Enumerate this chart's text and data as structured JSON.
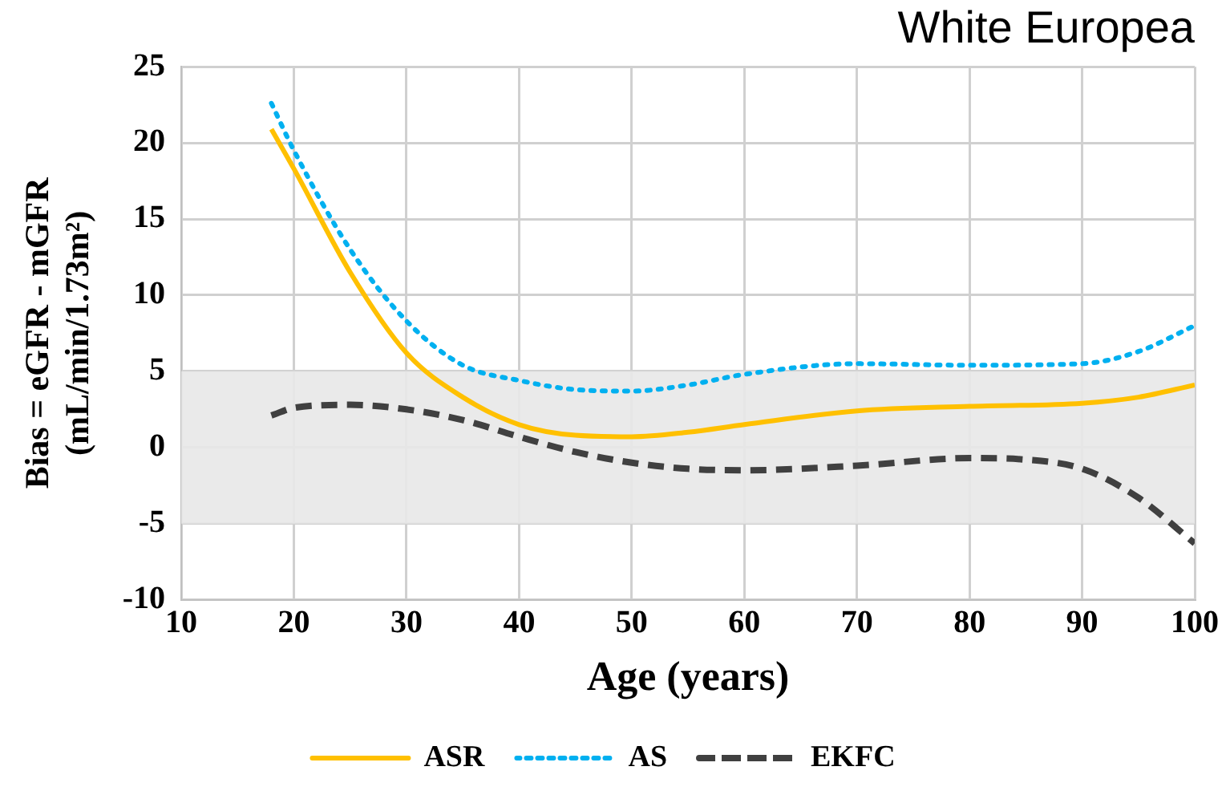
{
  "chart_data": {
    "type": "line",
    "title": "White Europea",
    "xlabel": "Age (years)",
    "ylabel": "Bias = eGFR - mGFR\n(mL/min/1.73m²)",
    "xlim": [
      10,
      100
    ],
    "xticks": [
      10,
      20,
      30,
      40,
      50,
      60,
      70,
      80,
      90,
      100
    ],
    "ylim": [
      -10,
      25
    ],
    "yticks": [
      -10,
      -5,
      0,
      5,
      10,
      15,
      20,
      25
    ],
    "grid": true,
    "legend": "bottom",
    "marker": "none",
    "bands": [
      {
        "axis": "y",
        "from": -5,
        "to": 5,
        "color": "#e8e8e8"
      }
    ],
    "series": [
      {
        "name": "ASR",
        "color": "#ffc000",
        "line_style": "solid",
        "x": [
          18,
          20,
          25,
          30,
          35,
          40,
          45,
          50,
          55,
          60,
          70,
          80,
          90,
          95,
          100
        ],
        "values": [
          20.9,
          18.3,
          11.5,
          6.2,
          3.3,
          1.5,
          0.8,
          0.7,
          1.0,
          1.5,
          2.4,
          2.7,
          2.9,
          3.3,
          4.1
        ]
      },
      {
        "name": "AS",
        "color": "#00b0f0",
        "line_style": "dotted",
        "x": [
          18,
          20,
          25,
          30,
          35,
          40,
          45,
          50,
          55,
          60,
          70,
          80,
          90,
          95,
          100
        ],
        "values": [
          22.6,
          19.5,
          13,
          8.3,
          5.4,
          4.4,
          3.8,
          3.7,
          4.1,
          4.8,
          5.5,
          5.4,
          5.5,
          6.3,
          8.0
        ]
      },
      {
        "name": "EKFC",
        "color": "#404040",
        "line_style": "dashed",
        "x": [
          18,
          20,
          25,
          30,
          35,
          40,
          45,
          50,
          55,
          60,
          70,
          80,
          85,
          90,
          95,
          100
        ],
        "values": [
          2.1,
          2.6,
          2.8,
          2.5,
          1.8,
          0.7,
          -0.3,
          -1.0,
          -1.4,
          -1.5,
          -1.2,
          -0.7,
          -0.8,
          -1.4,
          -3.3,
          -6.3
        ]
      }
    ]
  }
}
